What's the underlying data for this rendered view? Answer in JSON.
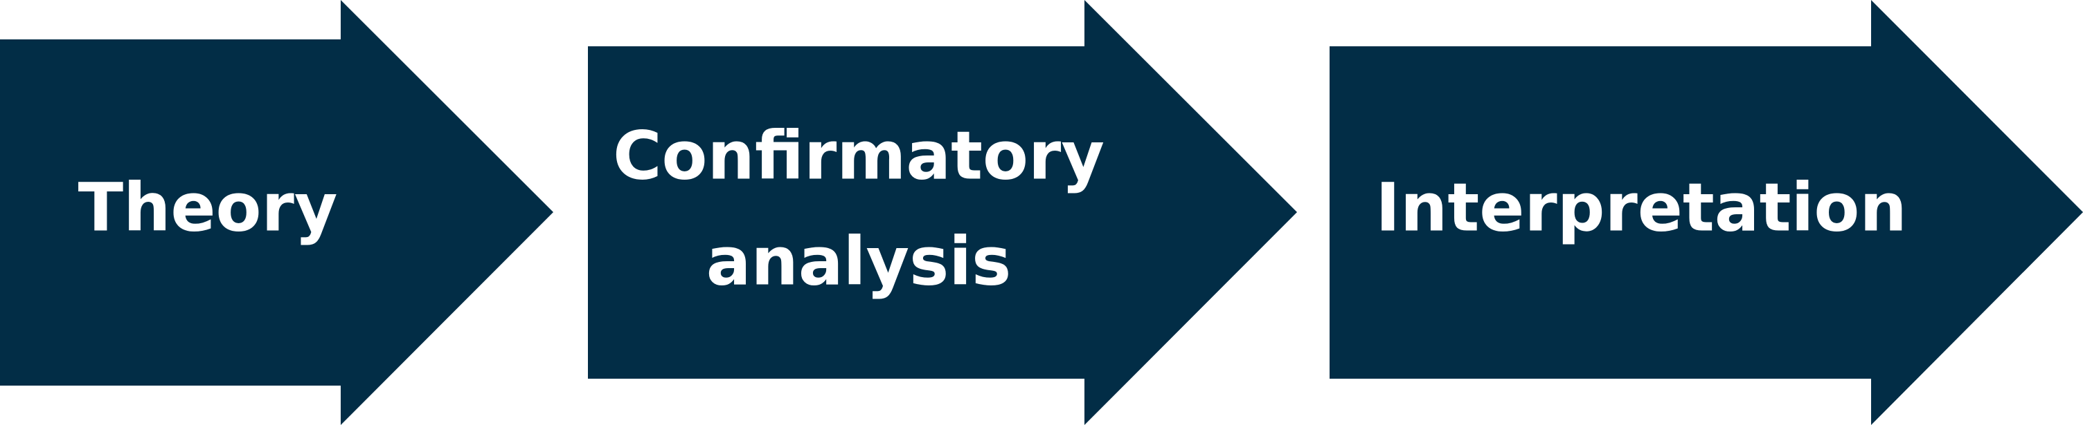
{
  "colors": {
    "arrow_fill": "#022d46",
    "label_text": "#ffffff",
    "background": "#ffffff"
  },
  "steps": [
    {
      "lines": [
        "Theory"
      ]
    },
    {
      "lines": [
        "Confirmatory",
        "analysis"
      ]
    },
    {
      "lines": [
        "Interpretation"
      ]
    }
  ]
}
